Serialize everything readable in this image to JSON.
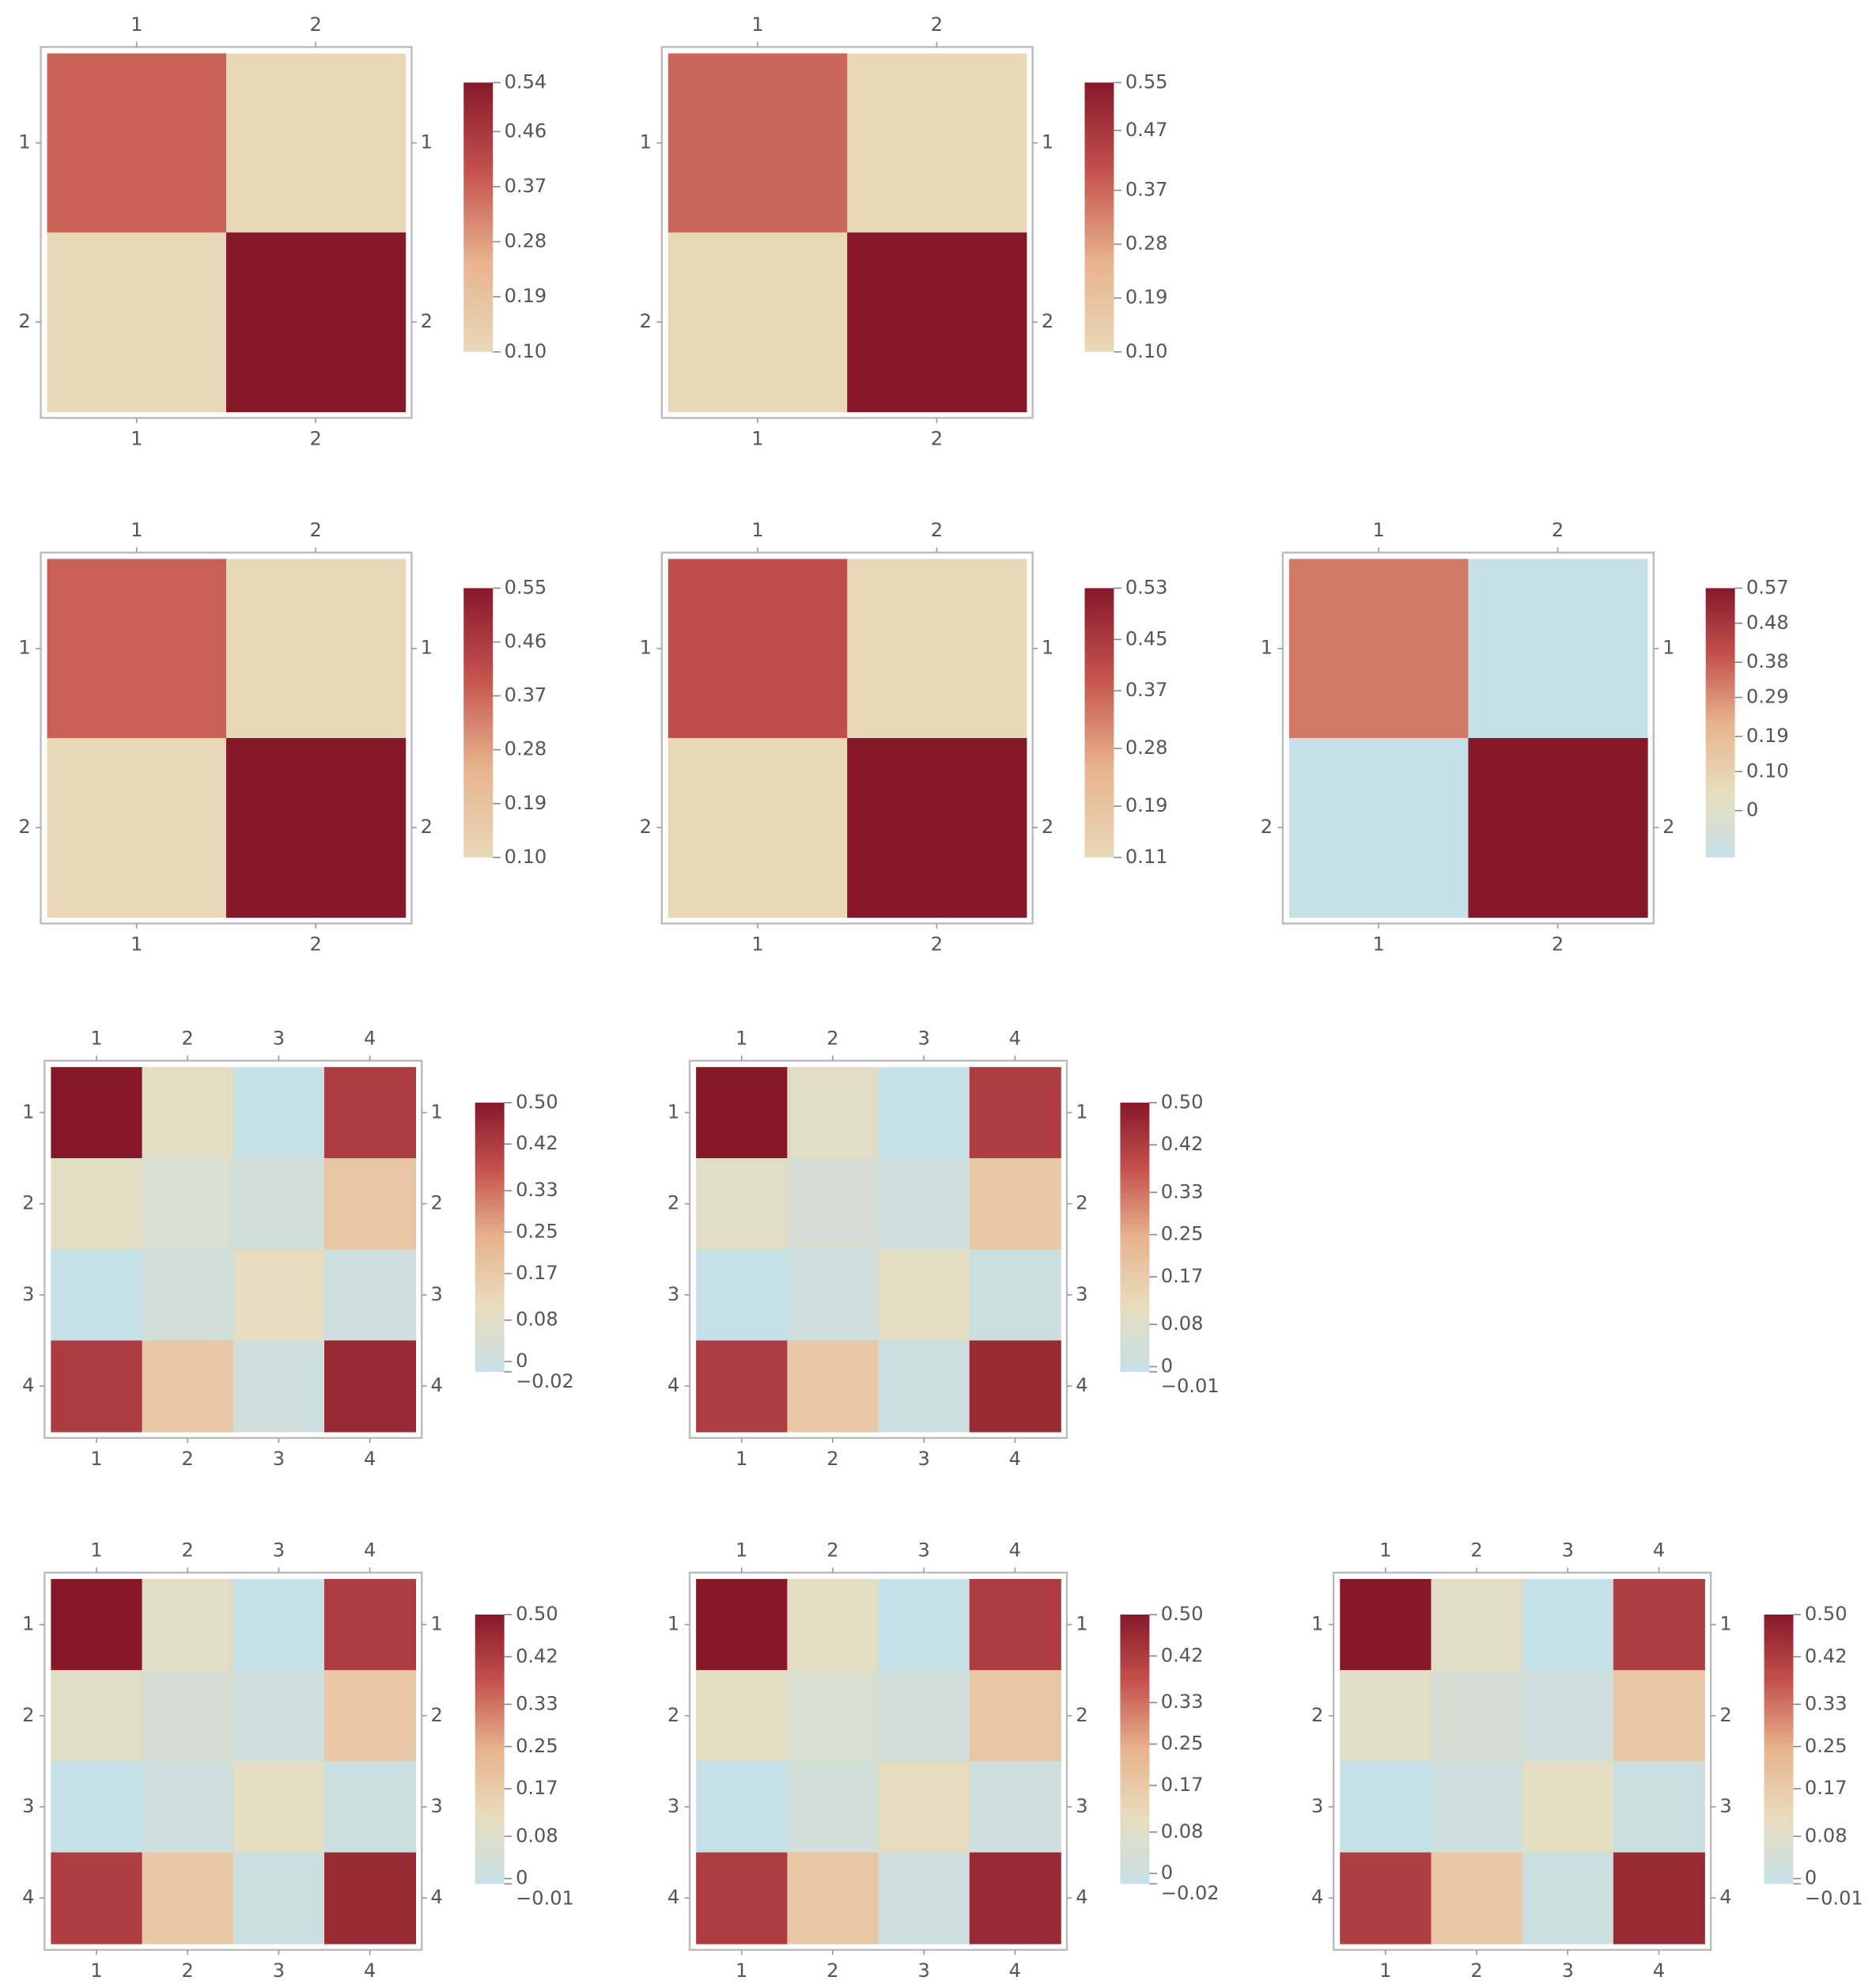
{
  "chart_data": [
    {
      "type": "heatmap",
      "categories": [
        "1",
        "2"
      ],
      "values": [
        [
          0.37,
          0.1
        ],
        [
          0.1,
          0.54
        ]
      ],
      "zlim": [
        0.1,
        0.54
      ],
      "zticks": [
        {
          "value": 0.1,
          "label": "0.10"
        },
        0.19,
        0.28,
        0.37,
        0.46,
        0.54
      ],
      "colorscale": [
        "#e8d8b8",
        "#e8b48e",
        "#c4534d",
        "#86182a"
      ]
    },
    {
      "type": "heatmap",
      "categories": [
        "1",
        "2"
      ],
      "values": [
        [
          0.37,
          0.1
        ],
        [
          0.1,
          0.55
        ]
      ],
      "zlim": [
        0.1,
        0.55
      ],
      "zticks": [
        {
          "value": 0.1,
          "label": "0.10"
        },
        0.19,
        0.28,
        0.37,
        0.47,
        0.55
      ],
      "colorscale": [
        "#e8d8b8",
        "#e8b48e",
        "#c4534d",
        "#86182a"
      ]
    },
    {
      "type": "heatmap",
      "categories": [
        "1",
        "2"
      ],
      "values": [
        [
          0.38,
          0.1
        ],
        [
          0.1,
          0.55
        ]
      ],
      "zlim": [
        0.1,
        0.55
      ],
      "zticks": [
        {
          "value": 0.1,
          "label": "0.10"
        },
        0.19,
        0.28,
        0.37,
        0.46,
        0.55
      ],
      "colorscale": [
        "#e8d8b8",
        "#e8b48e",
        "#c4534d",
        "#86182a"
      ]
    },
    {
      "type": "heatmap",
      "categories": [
        "1",
        "2"
      ],
      "values": [
        [
          0.4,
          0.11
        ],
        [
          0.11,
          0.53
        ]
      ],
      "zlim": [
        0.11,
        0.53
      ],
      "zticks": [
        0.11,
        0.19,
        0.28,
        0.37,
        0.45,
        0.53
      ],
      "colorscale": [
        "#e8d8b8",
        "#e8b48e",
        "#c4534d",
        "#86182a"
      ]
    },
    {
      "type": "heatmap",
      "categories": [
        "1",
        "2"
      ],
      "values": [
        [
          0.33,
          -0.12
        ],
        [
          -0.12,
          0.57
        ]
      ],
      "zlim": [
        -0.12,
        0.57
      ],
      "zticks": [
        0,
        {
          "value": 0.1,
          "label": "0.10"
        },
        0.19,
        0.29,
        0.38,
        0.48,
        0.57
      ],
      "colorscale": [
        "#c6e0e8",
        "#e8dcbc",
        "#e7b38d",
        "#c4534d",
        "#86182a"
      ]
    },
    {
      "type": "heatmap",
      "categories": [
        "1",
        "2",
        "3",
        "4"
      ],
      "values": [
        [
          0.5,
          0.09,
          -0.02,
          0.42
        ],
        [
          0.09,
          0.05,
          0.02,
          0.18
        ],
        [
          -0.02,
          0.02,
          0.1,
          0.01
        ],
        [
          0.42,
          0.18,
          0.01,
          0.46
        ]
      ],
      "zlim": [
        -0.02,
        0.5
      ],
      "zticks": [
        {
          "value": -0.02,
          "label": "−0.02"
        },
        0,
        0.08,
        0.17,
        0.25,
        0.33,
        0.42,
        {
          "value": 0.5,
          "label": "0.50"
        }
      ],
      "colorscale": [
        "#c6e0e8",
        "#e8dcbc",
        "#e7b38d",
        "#c4534d",
        "#86182a"
      ]
    },
    {
      "type": "heatmap",
      "categories": [
        "1",
        "2",
        "3",
        "4"
      ],
      "values": [
        [
          0.5,
          0.09,
          -0.01,
          0.42
        ],
        [
          0.09,
          0.05,
          0.02,
          0.18
        ],
        [
          -0.01,
          0.02,
          0.1,
          0.01
        ],
        [
          0.42,
          0.18,
          0.01,
          0.46
        ]
      ],
      "zlim": [
        -0.01,
        0.5
      ],
      "zticks": [
        {
          "value": -0.01,
          "label": "−0.01"
        },
        0,
        0.08,
        0.17,
        0.25,
        0.33,
        0.42,
        {
          "value": 0.5,
          "label": "0.50"
        }
      ],
      "colorscale": [
        "#c6e0e8",
        "#e8dcbc",
        "#e7b38d",
        "#c4534d",
        "#86182a"
      ]
    },
    {
      "type": "heatmap",
      "categories": [
        "1",
        "2",
        "3",
        "4"
      ],
      "values": [
        [
          0.5,
          0.09,
          -0.01,
          0.42
        ],
        [
          0.09,
          0.05,
          0.02,
          0.18
        ],
        [
          -0.01,
          0.02,
          0.1,
          0.01
        ],
        [
          0.42,
          0.18,
          0.01,
          0.46
        ]
      ],
      "zlim": [
        -0.01,
        0.5
      ],
      "zticks": [
        {
          "value": -0.01,
          "label": "−0.01"
        },
        0,
        0.08,
        0.17,
        0.25,
        0.33,
        0.42,
        {
          "value": 0.5,
          "label": "0.50"
        }
      ],
      "colorscale": [
        "#c6e0e8",
        "#e8dcbc",
        "#e7b38d",
        "#c4534d",
        "#86182a"
      ]
    },
    {
      "type": "heatmap",
      "categories": [
        "1",
        "2",
        "3",
        "4"
      ],
      "values": [
        [
          0.5,
          0.09,
          -0.02,
          0.42
        ],
        [
          0.09,
          0.05,
          0.02,
          0.18
        ],
        [
          -0.02,
          0.02,
          0.1,
          0.01
        ],
        [
          0.42,
          0.18,
          0.01,
          0.46
        ]
      ],
      "zlim": [
        -0.02,
        0.5
      ],
      "zticks": [
        {
          "value": -0.02,
          "label": "−0.02"
        },
        0,
        0.08,
        0.17,
        0.25,
        0.33,
        0.42,
        {
          "value": 0.5,
          "label": "0.50"
        }
      ],
      "colorscale": [
        "#c6e0e8",
        "#e8dcbc",
        "#e7b38d",
        "#c4534d",
        "#86182a"
      ]
    },
    {
      "type": "heatmap",
      "categories": [
        "1",
        "2",
        "3",
        "4"
      ],
      "values": [
        [
          0.5,
          0.09,
          -0.01,
          0.42
        ],
        [
          0.09,
          0.05,
          0.02,
          0.18
        ],
        [
          -0.01,
          0.02,
          0.1,
          0.01
        ],
        [
          0.42,
          0.18,
          0.01,
          0.46
        ]
      ],
      "zlim": [
        -0.01,
        0.5
      ],
      "zticks": [
        {
          "value": -0.01,
          "label": "−0.01"
        },
        0,
        0.08,
        0.17,
        0.25,
        0.33,
        0.42,
        {
          "value": 0.5,
          "label": "0.50"
        }
      ],
      "colorscale": [
        "#c6e0e8",
        "#e8dcbc",
        "#e7b38d",
        "#c4534d",
        "#86182a"
      ]
    }
  ]
}
